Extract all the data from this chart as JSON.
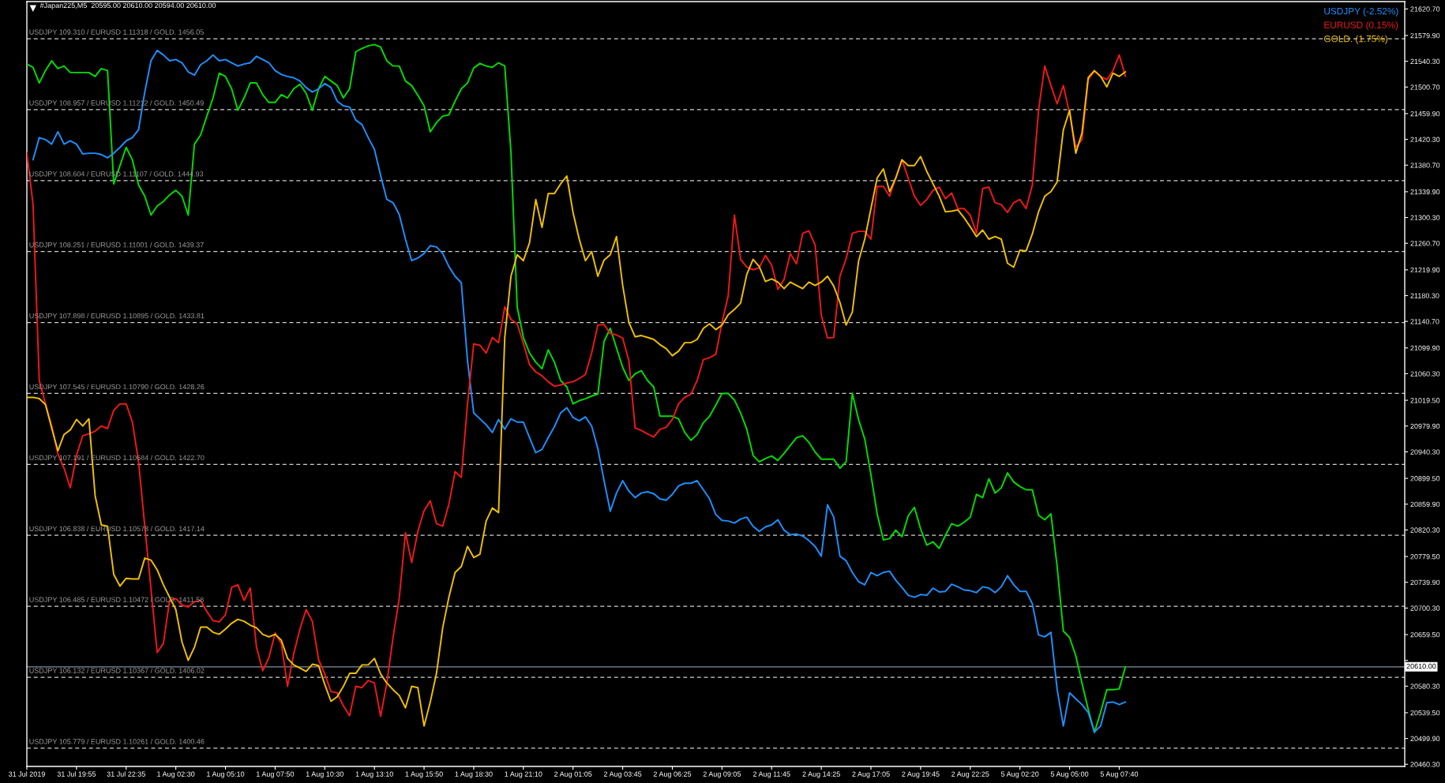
{
  "chart_data": {
    "type": "line",
    "title": "#Japan225,M5  20595.00 20610.00 20594.00 20610.00",
    "categories": [
      "31 Jul 2019",
      null,
      null,
      null,
      null,
      null,
      null,
      null,
      "31 Jul 19:55",
      null,
      null,
      null,
      null,
      null,
      null,
      null,
      "31 Jul 22:35",
      null,
      null,
      null,
      null,
      null,
      null,
      null,
      "1 Aug 02:30",
      null,
      null,
      null,
      null,
      null,
      null,
      null,
      "1 Aug 05:10",
      null,
      null,
      null,
      null,
      null,
      null,
      null,
      "1 Aug 07:50",
      null,
      null,
      null,
      null,
      null,
      null,
      null,
      "1 Aug 10:30",
      null,
      null,
      null,
      null,
      null,
      null,
      null,
      "1 Aug 13:10",
      null,
      null,
      null,
      null,
      null,
      null,
      null,
      "1 Aug 15:50",
      null,
      null,
      null,
      null,
      null,
      null,
      null,
      "1 Aug 18:30",
      null,
      null,
      null,
      null,
      null,
      null,
      null,
      "1 Aug 21:10",
      null,
      null,
      null,
      null,
      null,
      null,
      null,
      "2 Aug 01:05",
      null,
      null,
      null,
      null,
      null,
      null,
      null,
      "2 Aug 03:45",
      null,
      null,
      null,
      null,
      null,
      null,
      null,
      "2 Aug 06:25",
      null,
      null,
      null,
      null,
      null,
      null,
      null,
      "2 Aug 09:05",
      null,
      null,
      null,
      null,
      null,
      null,
      null,
      "2 Aug 11:45",
      null,
      null,
      null,
      null,
      null,
      null,
      null,
      "2 Aug 14:25",
      null,
      null,
      null,
      null,
      null,
      null,
      null,
      "2 Aug 17:05",
      null,
      null,
      null,
      null,
      null,
      null,
      null,
      "2 Aug 19:45",
      null,
      null,
      null,
      null,
      null,
      null,
      null,
      "2 Aug 22:25",
      null,
      null,
      null,
      null,
      null,
      null,
      null,
      "5 Aug 02:20",
      null,
      null,
      null,
      null,
      null,
      null,
      null,
      "5 Aug 05:00",
      null,
      null,
      null,
      null,
      null,
      null,
      null,
      "5 Aug 07:40",
      null,
      null,
      null,
      null,
      null,
      null,
      null,
      null,
      null,
      null,
      null,
      null,
      null,
      null,
      null,
      null,
      null,
      null,
      null,
      null,
      null,
      null,
      null,
      null,
      null,
      null,
      null,
      null,
      null,
      null,
      null,
      null,
      null,
      null,
      null,
      null,
      null,
      null,
      null,
      null,
      null,
      null,
      null,
      null,
      null,
      null
    ],
    "ylim": [
      20457,
      21632
    ],
    "yticks": [
      {
        "value": 21620.7,
        "label": "21620.70"
      },
      {
        "value": 21579.9,
        "label": "21579.90"
      },
      {
        "value": 21540.3,
        "label": "21540.30"
      },
      {
        "value": 21500.7,
        "label": "21500.70"
      },
      {
        "value": 21459.9,
        "label": "21459.90"
      },
      {
        "value": 21420.3,
        "label": "21420.30"
      },
      {
        "value": 21380.7,
        "label": "21380.70"
      },
      {
        "value": 21339.9,
        "label": "21339.90"
      },
      {
        "value": 21300.3,
        "label": "21300.30"
      },
      {
        "value": 21260.7,
        "label": "21260.70"
      },
      {
        "value": 21219.9,
        "label": "21219.90"
      },
      {
        "value": 21180.3,
        "label": "21180.30"
      },
      {
        "value": 21140.7,
        "label": "21140.70"
      },
      {
        "value": 21099.9,
        "label": "21099.90"
      },
      {
        "value": 21060.3,
        "label": "21060.30"
      },
      {
        "value": 21019.5,
        "label": "21019.50"
      },
      {
        "value": 20979.9,
        "label": "20979.90"
      },
      {
        "value": 20940.3,
        "label": "20940.30"
      },
      {
        "value": 20899.5,
        "label": "20899.50"
      },
      {
        "value": 20859.9,
        "label": "20859.90"
      },
      {
        "value": 20820.3,
        "label": "20820.30"
      },
      {
        "value": 20779.5,
        "label": "20779.50"
      },
      {
        "value": 20739.9,
        "label": "20739.90"
      },
      {
        "value": 20700.3,
        "label": "20700.30"
      },
      {
        "value": 20659.5,
        "label": "20659.50"
      },
      {
        "value": 20619.9,
        "label": null
      },
      {
        "value": 20580.3,
        "label": "20580.30"
      },
      {
        "value": 20539.5,
        "label": "20539.50"
      },
      {
        "value": 20499.9,
        "label": "20499.90"
      },
      {
        "value": 20460.3,
        "label": "20460.30"
      }
    ],
    "series": [
      {
        "color": "#00dc00",
        "values": [
          21536,
          21531,
          21507,
          21526,
          21541,
          21529,
          21533,
          21523,
          21523,
          21523,
          21523,
          21517,
          21529,
          21526,
          21352,
          21380,
          21408,
          21389,
          21350,
          21333,
          21304,
          21318,
          21325,
          21335,
          21342,
          21333,
          21304,
          21413,
          21427,
          21456,
          21484,
          21522,
          21517,
          21498,
          21465,
          21484,
          21507,
          21507,
          21489,
          21477,
          21477,
          21489,
          21484,
          21498,
          21505,
          21491,
          21465,
          21498,
          21517,
          21510,
          21503,
          21484,
          21498,
          21555,
          21560,
          21564,
          21566,
          21562,
          21541,
          21533,
          21533,
          21510,
          21503,
          21488,
          21472,
          21432,
          21446,
          21456,
          21458,
          21479,
          21498,
          21507,
          21530,
          21537,
          21533,
          21531,
          21538,
          21533,
          21400,
          21163,
          21116,
          21092,
          21078,
          21068,
          21097,
          21078,
          21050,
          21040,
          21014,
          21019,
          21022,
          21026,
          21029,
          21110,
          21130,
          21100,
          21070,
          21050,
          21060,
          21065,
          21050,
          21040,
          20995,
          20995,
          20995,
          20991,
          20970,
          20958,
          20967,
          20985,
          20995,
          21012,
          21030,
          21030,
          21020,
          21000,
          20975,
          20935,
          20925,
          20930,
          20934,
          20927,
          20938,
          20950,
          20962,
          20965,
          20955,
          20940,
          20929,
          20929,
          20929,
          20915,
          20925,
          21030,
          20990,
          20960,
          20905,
          20845,
          20805,
          20807,
          20820,
          20810,
          20842,
          20855,
          20822,
          20797,
          20802,
          20792,
          20812,
          20830,
          20826,
          20832,
          20840,
          20875,
          20870,
          20899,
          20877,
          20885,
          20908,
          20894,
          20887,
          20882,
          20882,
          20843,
          20836,
          20845,
          20764,
          20665,
          20655,
          20627,
          20585,
          20545,
          20509,
          20540,
          20575,
          20575,
          20576,
          20610,
          null,
          null,
          null,
          null,
          null,
          null,
          null,
          null,
          null,
          null,
          null,
          null,
          null,
          null,
          null,
          null,
          null,
          null,
          null,
          null,
          null,
          null,
          null,
          null,
          null,
          null,
          null,
          null,
          null,
          null,
          null,
          null,
          null,
          null,
          null,
          null,
          null,
          null,
          null,
          null,
          null,
          null,
          null,
          null,
          null
        ]
      },
      {
        "name": "USDJPY (-2.52%)",
        "color": "#1e90ff",
        "values": [
          null,
          21389,
          21423,
          21420,
          21413,
          21432,
          21413,
          21418,
          21413,
          21398,
          21399,
          21399,
          21397,
          21392,
          21399,
          21408,
          21418,
          21423,
          21435,
          21493,
          21541,
          21557,
          21550,
          21541,
          21543,
          21538,
          21524,
          21519,
          21535,
          21541,
          21550,
          21541,
          21543,
          21538,
          21533,
          21536,
          21538,
          21548,
          21543,
          21538,
          21526,
          21520,
          21517,
          21515,
          21510,
          21500,
          21493,
          21498,
          21506,
          21500,
          21479,
          21472,
          21470,
          21450,
          21443,
          21423,
          21405,
          21365,
          21328,
          21323,
          21305,
          21267,
          21234,
          21238,
          21245,
          21257,
          21255,
          21245,
          21225,
          21210,
          21200,
          21080,
          21000,
          20991,
          20982,
          20970,
          20990,
          20975,
          20991,
          20986,
          20986,
          20962,
          20939,
          20944,
          20962,
          20979,
          21000,
          21008,
          20993,
          20988,
          20994,
          20980,
          20945,
          20896,
          20849,
          20877,
          20896,
          20880,
          20870,
          20877,
          20879,
          20876,
          20868,
          20866,
          20875,
          20888,
          20892,
          20892,
          20896,
          20882,
          20868,
          20844,
          20835,
          20834,
          20831,
          20837,
          20840,
          20826,
          20818,
          20825,
          20828,
          20836,
          20820,
          20813,
          20814,
          20811,
          20804,
          20795,
          20780,
          20859,
          20840,
          20780,
          20773,
          20755,
          20741,
          20736,
          20755,
          20750,
          20755,
          20757,
          20743,
          20732,
          20720,
          20717,
          20721,
          20720,
          20731,
          20725,
          20726,
          20737,
          20733,
          20728,
          20727,
          20724,
          20733,
          20731,
          20724,
          20733,
          20750,
          20736,
          20726,
          20726,
          20707,
          20659,
          20656,
          20663,
          20575,
          20519,
          20570,
          20561,
          20552,
          20540,
          20510,
          20519,
          20555,
          20556,
          20552,
          20556,
          null,
          null,
          null,
          null,
          null,
          null,
          null,
          null,
          null,
          null,
          null,
          null,
          null,
          null,
          null,
          null,
          null,
          null,
          null,
          null,
          null,
          null,
          null,
          null,
          null,
          null,
          null,
          null,
          null,
          null,
          null,
          null,
          null,
          null,
          null,
          null,
          null,
          null,
          null,
          null,
          null,
          null,
          null,
          null,
          null
        ]
      },
      {
        "name": "EURUSD (0.15%)",
        "color": "#f01818",
        "values": [
          21400,
          21320,
          21050,
          21014,
          20980,
          20937,
          20915,
          20885,
          20935,
          20965,
          20968,
          20972,
          20980,
          20976,
          21004,
          21014,
          21014,
          20986,
          20925,
          20826,
          20730,
          20632,
          20646,
          20712,
          20715,
          20705,
          20702,
          20710,
          20712,
          20695,
          20681,
          20679,
          20690,
          20732,
          20736,
          20712,
          20731,
          20640,
          20604,
          20624,
          20662,
          20646,
          20580,
          20630,
          20668,
          20698,
          20680,
          20621,
          20599,
          20572,
          20570,
          20550,
          20535,
          20580,
          20578,
          20589,
          20585,
          20534,
          20585,
          20655,
          20715,
          20816,
          20770,
          20818,
          20850,
          20865,
          20830,
          20826,
          20860,
          20910,
          20901,
          21014,
          21106,
          21104,
          21092,
          21116,
          21108,
          21163,
          21144,
          21137,
          21107,
          21074,
          21063,
          21057,
          21048,
          21041,
          21043,
          21046,
          21048,
          21053,
          21059,
          21092,
          21135,
          21136,
          21122,
          21120,
          21115,
          21080,
          20977,
          20973,
          20968,
          20963,
          20975,
          20978,
          20990,
          21014,
          21024,
          21029,
          21050,
          21082,
          21085,
          21090,
          21139,
          21180,
          21304,
          21236,
          21224,
          21220,
          21223,
          21242,
          21227,
          21190,
          21205,
          21245,
          21229,
          21276,
          21280,
          21258,
          21150,
          21115,
          21116,
          21210,
          21237,
          21276,
          21279,
          21279,
          21267,
          21348,
          21348,
          21333,
          21361,
          21389,
          21361,
          21333,
          21319,
          21328,
          21342,
          21347,
          21329,
          21338,
          21314,
          21314,
          21304,
          21276,
          21345,
          21347,
          21323,
          21320,
          21308,
          21323,
          21328,
          21314,
          21350,
          21465,
          21533,
          21503,
          21475,
          21503,
          21460,
          21408,
          21420,
          21512,
          21525,
          21517,
          21512,
          21526,
          21550,
          21517,
          null,
          null,
          null,
          null,
          null,
          null,
          null,
          null,
          null,
          null,
          null,
          null,
          null,
          null,
          null,
          null,
          null,
          null,
          null,
          null,
          null,
          null,
          null,
          null,
          null,
          null,
          null,
          null,
          null,
          null,
          null,
          null,
          null,
          null,
          null,
          null,
          null,
          null,
          null,
          null,
          null,
          null,
          null,
          null,
          null
        ]
      },
      {
        "name": "GOLD. (1.75%)",
        "color": "#f0c000",
        "values": [
          21024,
          21024,
          21022,
          21013,
          20977,
          20942,
          20967,
          20974,
          20990,
          20980,
          20991,
          20873,
          20828,
          20826,
          20752,
          20734,
          20746,
          20745,
          20745,
          20777,
          20774,
          20759,
          20736,
          20717,
          20698,
          20648,
          20620,
          20640,
          20671,
          20671,
          20663,
          20660,
          20668,
          20677,
          20683,
          20680,
          20674,
          20670,
          20660,
          20656,
          20660,
          20651,
          20623,
          20613,
          20608,
          20603,
          20614,
          20612,
          20583,
          20557,
          20564,
          20580,
          20600,
          20600,
          20613,
          20613,
          20623,
          20599,
          20585,
          20575,
          20566,
          20547,
          20580,
          20578,
          20519,
          20556,
          20600,
          20670,
          20717,
          20755,
          20764,
          20795,
          20778,
          20783,
          20834,
          20854,
          20847,
          21116,
          21210,
          21243,
          21234,
          21262,
          21328,
          21285,
          21337,
          21337,
          21352,
          21364,
          21308,
          21267,
          21234,
          21248,
          21210,
          21235,
          21243,
          21271,
          21196,
          21139,
          21117,
          21119,
          21116,
          21113,
          21105,
          21099,
          21088,
          21095,
          21108,
          21108,
          21113,
          21130,
          21137,
          21128,
          21135,
          21151,
          21159,
          21169,
          21213,
          21236,
          21225,
          21202,
          21206,
          21201,
          21191,
          21201,
          21196,
          21191,
          21201,
          21196,
          21201,
          21210,
          21195,
          21170,
          21135,
          21155,
          21233,
          21267,
          21314,
          21361,
          21375,
          21340,
          21361,
          21389,
          21380,
          21380,
          21394,
          21371,
          21352,
          21333,
          21309,
          21310,
          21312,
          21300,
          21286,
          21271,
          21281,
          21267,
          21271,
          21267,
          21230,
          21224,
          21250,
          21249,
          21275,
          21309,
          21333,
          21340,
          21355,
          21435,
          21465,
          21399,
          21430,
          21515,
          21526,
          21517,
          21501,
          21522,
          21517,
          21524,
          null,
          null,
          null,
          null,
          null,
          null,
          null,
          null,
          null,
          null,
          null,
          null,
          null,
          null,
          null,
          null,
          null,
          null,
          null,
          null,
          null,
          null,
          null,
          null,
          null,
          null,
          null,
          null,
          null,
          null,
          null,
          null,
          null,
          null,
          null,
          null,
          null,
          null,
          null,
          null,
          null,
          null,
          null,
          null,
          null
        ]
      }
    ],
    "ref_lines": [
      {
        "axis": "y",
        "value": 21575,
        "label": "USDJPY 109.310 / EURUSD 1.11318 / GOLD. 1456.05",
        "color": "#d0d0d0",
        "line_style": "dashed"
      },
      {
        "axis": "y",
        "value": 21466,
        "label": "USDJPY 108.957 / EURUSD 1.11212 / GOLD. 1450.49",
        "color": "#d0d0d0",
        "line_style": "dashed"
      },
      {
        "axis": "y",
        "value": 21357,
        "label": "USDJPY 108.604 / EURUSD 1.11107 / GOLD. 1444.93",
        "color": "#d0d0d0",
        "line_style": "dashed"
      },
      {
        "axis": "y",
        "value": 21248,
        "label": "USDJPY 108.251 / EURUSD 1.11001 / GOLD. 1439.37",
        "color": "#d0d0d0",
        "line_style": "dashed"
      },
      {
        "axis": "y",
        "value": 21139,
        "label": "USDJPY 107.898 / EURUSD 1.10895 / GOLD. 1433.81",
        "color": "#d0d0d0",
        "line_style": "dashed"
      },
      {
        "axis": "y",
        "value": 21030,
        "label": "USDJPY 107.545 / EURUSD 1.10790 / GOLD. 1428.26",
        "color": "#d0d0d0",
        "line_style": "dashed"
      },
      {
        "axis": "y",
        "value": 20921,
        "label": "USDJPY 107.191 / EURUSD 1.10684 / GOLD. 1422.70",
        "color": "#d0d0d0",
        "line_style": "dashed"
      },
      {
        "axis": "y",
        "value": 20812,
        "label": "USDJPY 106.838 / EURUSD 1.10578 / GOLD. 1417.14",
        "color": "#d0d0d0",
        "line_style": "dashed"
      },
      {
        "axis": "y",
        "value": 20703,
        "label": "USDJPY 106.485 / EURUSD 1.10472 / GOLD. 1411.58",
        "color": "#d0d0d0",
        "line_style": "dashed"
      },
      {
        "axis": "y",
        "value": 20594,
        "label": "USDJPY 106.132 / EURUSD 1.10367 / GOLD. 1406.02",
        "color": "#d0d0d0",
        "line_style": "dashed"
      },
      {
        "axis": "y",
        "value": 20485,
        "label": "USDJPY 105.779 / EURUSD 1.10261 / GOLD. 1400.46",
        "color": "#d0d0d0",
        "line_style": "dashed"
      },
      {
        "axis": "y",
        "value": 20610,
        "label": "20610.00",
        "color": "#7f8fa0",
        "line_style": "solid"
      }
    ],
    "legend": "top right"
  }
}
